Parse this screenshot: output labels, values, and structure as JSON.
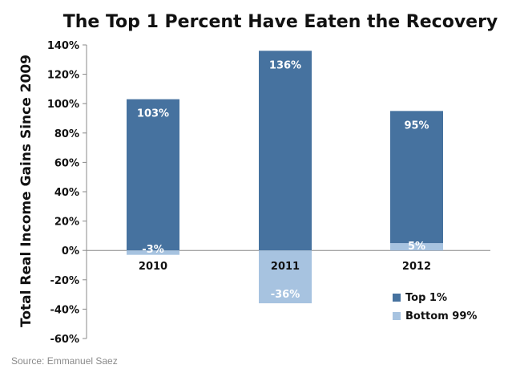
{
  "chart_data": {
    "type": "bar",
    "title": "The Top 1 Percent Have Eaten the Recovery",
    "ylabel": "Total Real Income Gains Since 2009",
    "xlabel": "",
    "categories": [
      "2010",
      "2011",
      "2012"
    ],
    "series": [
      {
        "name": "Top 1%",
        "values": [
          103,
          136,
          95
        ],
        "labels": [
          "103%",
          "136%",
          "95%"
        ],
        "color": "#46729f"
      },
      {
        "name": "Bottom 99%",
        "values": [
          -3,
          -36,
          5
        ],
        "labels": [
          "-3%",
          "-36%",
          "5%"
        ],
        "color": "#a7c3e0"
      }
    ],
    "ylim": [
      -60,
      140
    ],
    "yticks": [
      140,
      120,
      100,
      80,
      60,
      40,
      20,
      0,
      -20,
      -40,
      -60
    ],
    "ytick_labels": [
      "140%",
      "120%",
      "100%",
      "80%",
      "60%",
      "40%",
      "20%",
      "0%",
      "-20%",
      "-40%",
      "-60%"
    ],
    "grid": false,
    "legend_position": "bottom-right",
    "source": "Source: Emmanuel Saez"
  }
}
